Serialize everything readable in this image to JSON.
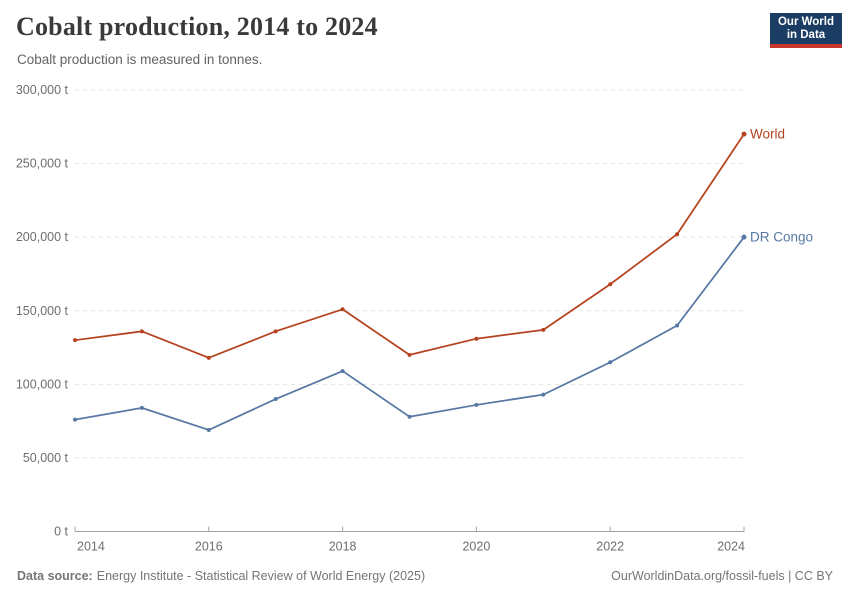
{
  "header": {
    "title": "Cobalt production, 2014 to 2024",
    "subtitle": "Cobalt production is measured in tonnes."
  },
  "logo": {
    "line1": "Our World",
    "line2": "in Data",
    "bg_color": "#1b3d63",
    "bar_color": "#c5362b"
  },
  "chart_data": {
    "type": "line",
    "title": "Cobalt production, 2014 to 2024",
    "unit": "t",
    "x": [
      2014,
      2015,
      2016,
      2017,
      2018,
      2019,
      2020,
      2021,
      2022,
      2023,
      2024
    ],
    "series": [
      {
        "name": "World",
        "color": "#b5431f",
        "values": [
          130000,
          136000,
          118000,
          136000,
          151000,
          120000,
          131000,
          137000,
          168000,
          202000,
          270000
        ]
      },
      {
        "name": "DR Congo",
        "color": "#5778a4",
        "values": [
          76000,
          84000,
          69000,
          90000,
          109000,
          78000,
          86000,
          93000,
          115000,
          140000,
          200000
        ]
      }
    ],
    "ylim": [
      0,
      300000
    ],
    "yticks": [
      0,
      50000,
      100000,
      150000,
      200000,
      250000,
      300000
    ],
    "xticks": [
      2014,
      2016,
      2018,
      2020,
      2022,
      2024
    ],
    "grid": "horizontal-dashed",
    "legend": "line-end-labels",
    "colors": {
      "grid": "#e2e2e2",
      "axis": "#a3a3a3",
      "tick_text": "#6e6e6e"
    }
  },
  "footer": {
    "source_label": "Data source:",
    "source_value": "Energy Institute - Statistical Review of World Energy (2025)",
    "credit": "OurWorldinData.org/fossil-fuels | CC BY"
  }
}
